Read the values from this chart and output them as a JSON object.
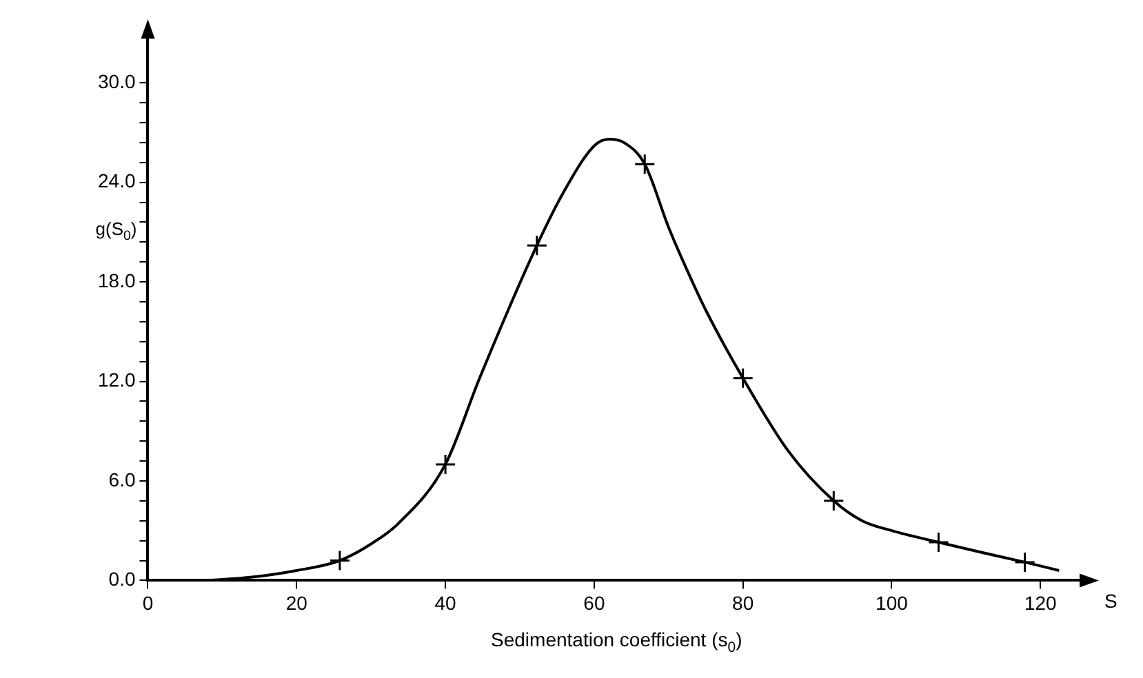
{
  "chart_data": {
    "type": "line",
    "xlabel": "Sedimentation coefficient (s$_{0}$)",
    "ylabel": "g(S$_{0}$)",
    "annotations": [
      "S"
    ],
    "xlim": [
      0,
      126
    ],
    "xticks": [
      0,
      20,
      40,
      60,
      80,
      100,
      120
    ],
    "ylim": [
      0,
      33
    ],
    "yticks": [
      {
        "value": 0,
        "label": "0.0"
      },
      {
        "value": 1.2,
        "label": null
      },
      {
        "value": 2.4,
        "label": null
      },
      {
        "value": 3.6,
        "label": null
      },
      {
        "value": 4.8,
        "label": null
      },
      {
        "value": 6,
        "label": "6.0"
      },
      {
        "value": 7.2,
        "label": null
      },
      {
        "value": 8.4,
        "label": null
      },
      {
        "value": 9.6,
        "label": null
      },
      {
        "value": 10.8,
        "label": null
      },
      {
        "value": 12,
        "label": "12.0"
      },
      {
        "value": 13.2,
        "label": null
      },
      {
        "value": 14.4,
        "label": null
      },
      {
        "value": 15.6,
        "label": null
      },
      {
        "value": 16.8,
        "label": null
      },
      {
        "value": 18,
        "label": "18.0"
      },
      {
        "value": 19.2,
        "label": null
      },
      {
        "value": 20.4,
        "label": null
      },
      {
        "value": 21.6,
        "label": null
      },
      {
        "value": 22.8,
        "label": null
      },
      {
        "value": 24,
        "label": "24.0"
      },
      {
        "value": 25.2,
        "label": null
      },
      {
        "value": 26.4,
        "label": null
      },
      {
        "value": 27.6,
        "label": null
      },
      {
        "value": 28.8,
        "label": null
      },
      {
        "value": 30,
        "label": "30.0"
      }
    ],
    "grid": false,
    "legend": false,
    "series": [
      {
        "type": "line",
        "color": "#000000",
        "marker": "none",
        "x": [
          8,
          14,
          20,
          25.8,
          30,
          33.6,
          40,
          44.6,
          52.3,
          56,
          60,
          62,
          64,
          66.8,
          70,
          72.3,
          75,
          80,
          86.1,
          92.2,
          96,
          100,
          106.3,
          112,
          117.9,
          122.5
        ],
        "values": [
          0,
          0.2,
          0.6,
          1.2,
          2.2,
          3.4,
          7.0,
          12.2,
          20.2,
          23.5,
          26.2,
          26.6,
          26.4,
          25.1,
          21.3,
          18.9,
          16.3,
          12.2,
          7.8,
          4.8,
          3.6,
          3.0,
          2.3,
          1.7,
          1.1,
          0.6
        ]
      },
      {
        "type": "scatter",
        "color": "#000000",
        "marker": "cross",
        "x": [
          25.8,
          40,
          52.3,
          66.8,
          80,
          92.2,
          106.3,
          117.9
        ],
        "values": [
          1.2,
          7.0,
          20.2,
          25.1,
          12.2,
          4.8,
          2.3,
          1.1
        ]
      }
    ]
  }
}
